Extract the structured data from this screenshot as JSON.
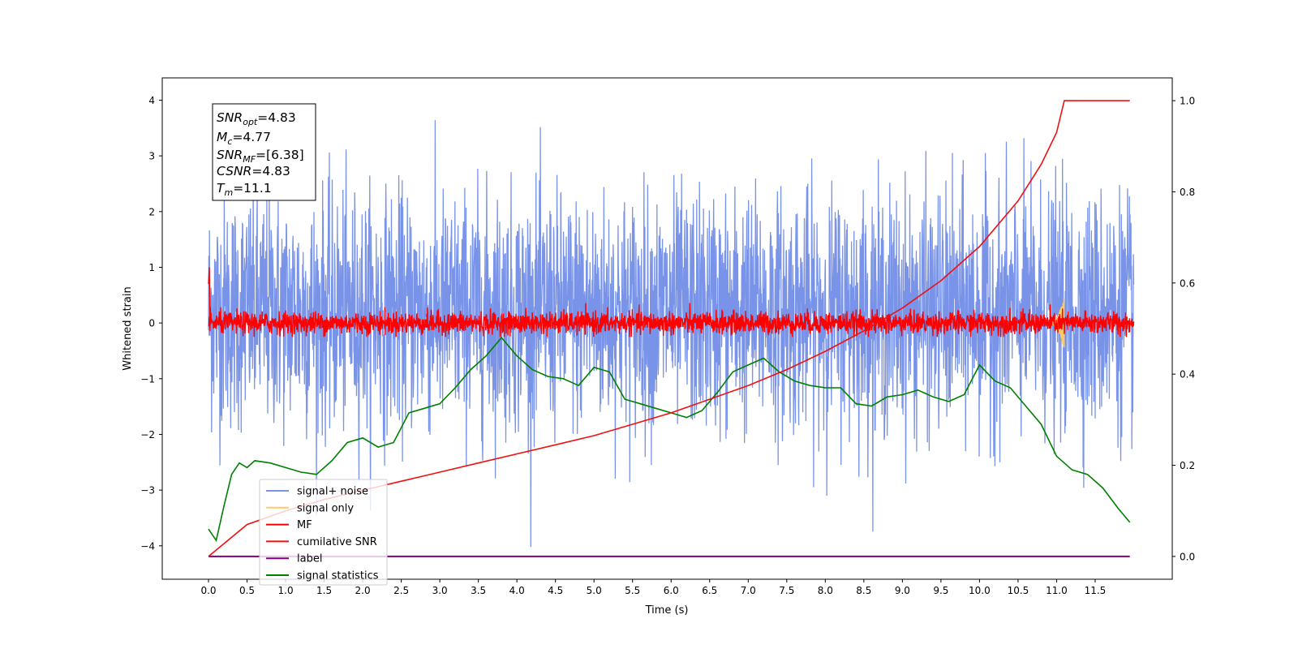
{
  "chart_data": {
    "type": "line",
    "xlabel": "Time (s)",
    "ylabel": "Whitened strain",
    "xlim": [
      -0.6,
      12.5
    ],
    "ylim": [
      -4.6,
      4.4
    ],
    "y2lim": [
      -0.05,
      1.05
    ],
    "xticks": [
      "0.0",
      "0.5",
      "1.0",
      "1.5",
      "2.0",
      "2.5",
      "3.0",
      "3.5",
      "4.0",
      "4.5",
      "5.0",
      "5.5",
      "6.0",
      "6.5",
      "7.0",
      "7.5",
      "8.0",
      "8.5",
      "9.0",
      "9.5",
      "10.0",
      "10.5",
      "11.0",
      "11.5"
    ],
    "yticks": [
      "4",
      "3",
      "2",
      "1",
      "0",
      "−1",
      "−2",
      "−3",
      "−4"
    ],
    "y2ticks": [
      "1.0",
      "0.8",
      "0.6",
      "0.4",
      "0.2",
      "0.0"
    ],
    "annotation": {
      "snr_opt": {
        "symbol": "SNR",
        "sub": "opt",
        "value": "=4.83"
      },
      "mc": {
        "symbol": "M",
        "sub": "c",
        "value": "=4.77"
      },
      "snr_mf": {
        "symbol": "SNR",
        "sub": "MF",
        "value": "=[6.38]"
      },
      "csnr": {
        "symbol": "CSNR",
        "value": "=4.83"
      },
      "tm": {
        "symbol": "T",
        "sub": "m",
        "value": "=11.1"
      }
    },
    "legend_position": "lower-left",
    "series": [
      {
        "name": "signal+ noise",
        "color": "#7893e8",
        "axis": "left",
        "noise_range": [
          -4.1,
          4.0
        ],
        "duration": 12.0
      },
      {
        "name": "signal only",
        "color": "#ffc966",
        "axis": "left",
        "chirp_end": 11.1,
        "peak": 0.5
      },
      {
        "name": "MF",
        "color": "#ff0000",
        "axis": "left",
        "noise_range": [
          -0.25,
          0.55
        ],
        "duration": 12.0
      },
      {
        "name": "cumilative SNR",
        "color": "#ee1111",
        "axis": "right",
        "x": [
          0.0,
          0.5,
          1.0,
          1.5,
          2.0,
          2.5,
          3.0,
          3.5,
          4.0,
          4.5,
          5.0,
          5.5,
          6.0,
          6.5,
          7.0,
          7.5,
          8.0,
          8.5,
          9.0,
          9.5,
          10.0,
          10.5,
          10.8,
          11.0,
          11.1,
          11.95
        ],
        "y": [
          0.0,
          0.07,
          0.1,
          0.125,
          0.145,
          0.165,
          0.185,
          0.205,
          0.225,
          0.245,
          0.265,
          0.29,
          0.315,
          0.345,
          0.375,
          0.41,
          0.45,
          0.495,
          0.545,
          0.605,
          0.68,
          0.78,
          0.86,
          0.93,
          1.0,
          1.0
        ]
      },
      {
        "name": "label",
        "color": "#800080",
        "axis": "right",
        "x": [
          0.0,
          11.95
        ],
        "y": [
          0.0,
          0.0
        ]
      },
      {
        "name": "signal statistics",
        "color": "#008000",
        "axis": "right",
        "x": [
          0.0,
          0.1,
          0.2,
          0.3,
          0.4,
          0.5,
          0.6,
          0.8,
          1.0,
          1.2,
          1.4,
          1.6,
          1.8,
          2.0,
          2.2,
          2.4,
          2.6,
          2.8,
          3.0,
          3.2,
          3.4,
          3.6,
          3.8,
          4.0,
          4.2,
          4.4,
          4.6,
          4.8,
          5.0,
          5.2,
          5.4,
          5.6,
          5.8,
          6.0,
          6.2,
          6.4,
          6.6,
          6.8,
          7.0,
          7.2,
          7.4,
          7.6,
          7.8,
          8.0,
          8.2,
          8.4,
          8.6,
          8.8,
          9.0,
          9.2,
          9.4,
          9.6,
          9.8,
          10.0,
          10.2,
          10.4,
          10.6,
          10.8,
          11.0,
          11.2,
          11.4,
          11.6,
          11.8,
          11.95
        ],
        "y": [
          0.06,
          0.035,
          0.11,
          0.18,
          0.205,
          0.195,
          0.21,
          0.205,
          0.195,
          0.185,
          0.18,
          0.21,
          0.25,
          0.26,
          0.24,
          0.25,
          0.315,
          0.325,
          0.335,
          0.37,
          0.41,
          0.44,
          0.48,
          0.44,
          0.41,
          0.395,
          0.39,
          0.375,
          0.415,
          0.405,
          0.345,
          0.335,
          0.325,
          0.315,
          0.305,
          0.32,
          0.36,
          0.405,
          0.42,
          0.435,
          0.405,
          0.385,
          0.375,
          0.37,
          0.37,
          0.335,
          0.33,
          0.35,
          0.355,
          0.365,
          0.35,
          0.34,
          0.355,
          0.42,
          0.385,
          0.37,
          0.33,
          0.29,
          0.22,
          0.19,
          0.18,
          0.15,
          0.105,
          0.075
        ]
      }
    ]
  }
}
